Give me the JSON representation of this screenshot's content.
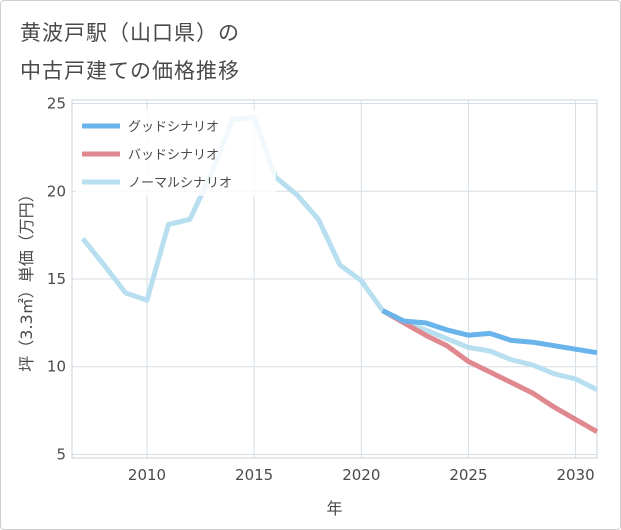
{
  "title": {
    "line1": "黄波戸駅（山口県）の",
    "line2": "中古戸建ての価格推移"
  },
  "chart_data": {
    "type": "line",
    "xlabel": "年",
    "ylabel": "坪（3.3㎡）単価（万円）",
    "xlim": [
      2006.5,
      2031
    ],
    "ylim": [
      4.8,
      25.2
    ],
    "xticks": [
      2010,
      2015,
      2020,
      2025,
      2030
    ],
    "yticks": [
      5,
      10,
      15,
      20,
      25
    ],
    "grid": true,
    "legend_position": "top-left",
    "series": [
      {
        "name": "グッドシナリオ",
        "color": "#6ab4ec",
        "x": [
          2021,
          2022,
          2023,
          2024,
          2025,
          2026,
          2027,
          2028,
          2029,
          2030,
          2031
        ],
        "y": [
          13.2,
          12.6,
          12.5,
          12.1,
          11.8,
          11.9,
          11.5,
          11.4,
          11.2,
          11.0,
          10.8
        ]
      },
      {
        "name": "バッドシナリオ",
        "color": "#e0888f",
        "x": [
          2021,
          2022,
          2023,
          2024,
          2025,
          2026,
          2027,
          2028,
          2029,
          2030,
          2031
        ],
        "y": [
          13.2,
          12.5,
          11.8,
          11.2,
          10.3,
          9.7,
          9.1,
          8.5,
          7.7,
          7.0,
          6.3
        ]
      },
      {
        "name": "ノーマルシナリオ",
        "color": "#b8dff0",
        "x": [
          2007,
          2008,
          2009,
          2010,
          2011,
          2012,
          2013,
          2014,
          2015,
          2016,
          2017,
          2018,
          2019,
          2020,
          2021,
          2022,
          2023,
          2024,
          2025,
          2026,
          2027,
          2028,
          2029,
          2030,
          2031
        ],
        "y": [
          17.3,
          15.8,
          14.2,
          13.8,
          18.1,
          18.4,
          21.0,
          24.1,
          24.2,
          20.8,
          19.8,
          18.4,
          15.8,
          14.9,
          13.2,
          12.5,
          12.1,
          11.6,
          11.1,
          10.9,
          10.4,
          10.1,
          9.6,
          9.3,
          8.7
        ]
      }
    ]
  }
}
